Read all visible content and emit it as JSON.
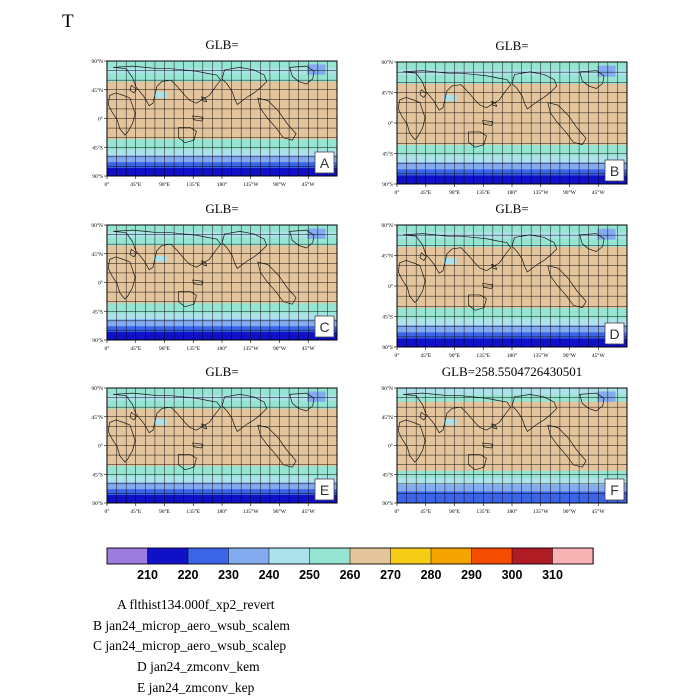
{
  "page_title": "T",
  "chart_data": {
    "type": "heatmap",
    "colorbar": {
      "colors": [
        "#9c7cdc",
        "#1010c8",
        "#3c64e6",
        "#84aaf0",
        "#aee2ea",
        "#96e4d2",
        "#e4c49c",
        "#f6cc16",
        "#f6a400",
        "#f44c00",
        "#b01c24",
        "#f8b4b4"
      ],
      "levels": [
        "210",
        "220",
        "230",
        "240",
        "250",
        "260",
        "270",
        "280",
        "290",
        "300",
        "310"
      ]
    },
    "lat_ticks": [
      "90°N",
      "45°N",
      "0°",
      "45°S",
      "90°S"
    ],
    "lon_ticks": [
      "0°",
      "45°E",
      "90°E",
      "135°E",
      "180°",
      "135°W",
      "90°W",
      "45°W"
    ],
    "panels": [
      {
        "letter": "A",
        "title": "GLB=",
        "variant": "model"
      },
      {
        "letter": "B",
        "title": "GLB=",
        "variant": "model"
      },
      {
        "letter": "C",
        "title": "GLB=",
        "variant": "model"
      },
      {
        "letter": "D",
        "title": "GLB=",
        "variant": "model"
      },
      {
        "letter": "E",
        "title": "GLB=",
        "variant": "model"
      },
      {
        "letter": "F",
        "title": "GLB=258.5504726430501",
        "variant": "obs"
      }
    ]
  },
  "legend": [
    "A  flthist134.000f_xp2_revert",
    "B  jan24_microp_aero_wsub_scalem",
    "C  jan24_microp_aero_wsub_scalep",
    "D  jan24_zmconv_kem",
    "E  jan24_zmconv_kep"
  ]
}
